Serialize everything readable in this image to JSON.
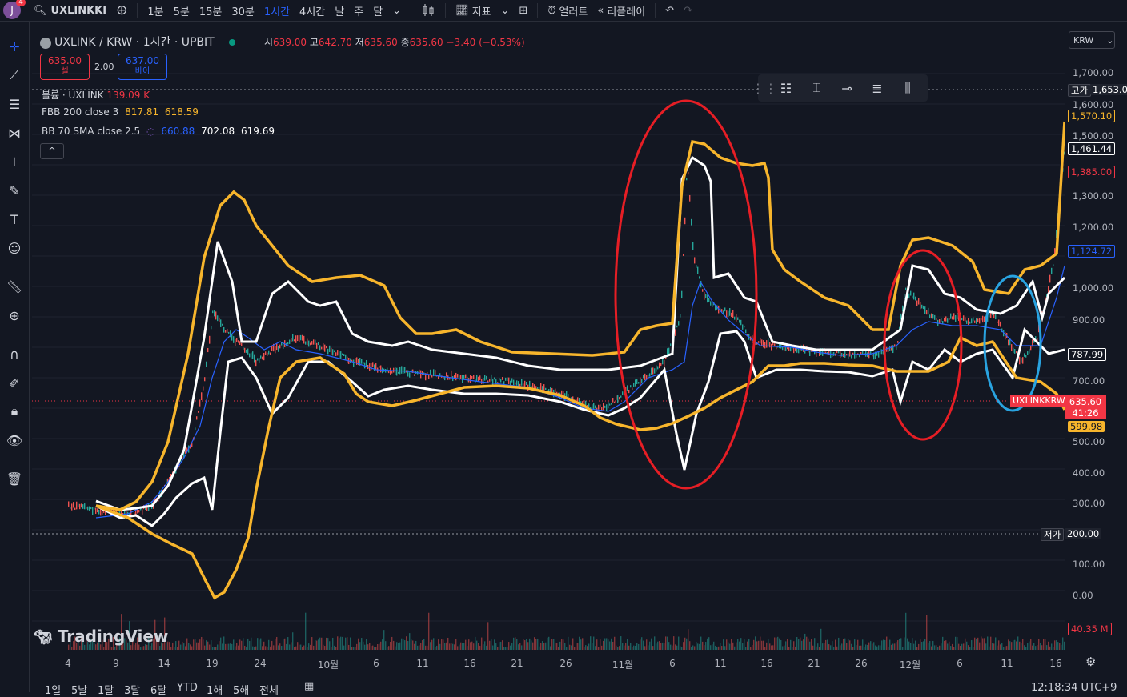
{
  "topbar": {
    "avatar_letter": "J",
    "avatar_badge": "4",
    "symbol": "UXLINKKI",
    "timeframes": [
      "1분",
      "5분",
      "15분",
      "30분",
      "1시간",
      "4시간",
      "날",
      "주",
      "달"
    ],
    "active_timeframe": "1시간",
    "indicators_label": "지표",
    "alert_label": "얼러트",
    "replay_label": "리플레이"
  },
  "legend": {
    "title": "UXLINK / KRW · 1시간 · UPBIT",
    "ohlc": {
      "o_label": "시",
      "o": "639.00",
      "h_label": "고",
      "h": "642.70",
      "l_label": "저",
      "l": "635.60",
      "c_label": "종",
      "c": "635.60",
      "change": "−3.40 (−0.53%)"
    },
    "sell_price": "635.00",
    "sell_label": "셀",
    "spread": "2.00",
    "buy_price": "637.00",
    "buy_label": "바이",
    "volume_label": "볼륨 · UXLINK",
    "volume_value": "139.09 K",
    "fbb_label": "FBB 200 close 3",
    "fbb_v1": "817.81",
    "fbb_v2": "618.59",
    "bb_label": "BB 70 SMA close 2.5",
    "bb_v1": "660.88",
    "bb_v2": "702.08",
    "bb_v3": "619.69"
  },
  "currency_select": "KRW",
  "price_axis": {
    "labels": [
      "1,700.00",
      "1,600.00",
      "1,500.00",
      "1,300.00",
      "1,200.00",
      "1,000.00",
      "900.00",
      "700.00",
      "500.00",
      "400.00",
      "300.00",
      "100.00",
      "0.00"
    ],
    "high_label": "고가",
    "high_value": "1,653.00",
    "low_label": "저가",
    "low_value": "200.00",
    "tag_1570": "1,570.10",
    "tag_1461": "1,461.44",
    "tag_1385": "1,385.00",
    "tag_1124": "1,124.72",
    "tag_787": "787.99",
    "current_symbol": "UXLINKKRW",
    "current_price": "635.60",
    "countdown": "41:26",
    "tag_599": "599.98",
    "volume_tag": "40.35 M"
  },
  "time_axis": [
    "4",
    "9",
    "14",
    "19",
    "24",
    "10월",
    "6",
    "11",
    "16",
    "21",
    "26",
    "11월",
    "6",
    "11",
    "16",
    "21",
    "26",
    "12월",
    "6",
    "11",
    "16"
  ],
  "bottombar": {
    "ranges": [
      "1일",
      "5날",
      "1달",
      "3달",
      "6달",
      "YTD",
      "1해",
      "5해",
      "전체"
    ],
    "clock": "12:18:34 UTC+9"
  },
  "watermark": "TradingView",
  "colors": {
    "outer_band": "#f7b52c",
    "inner_band": "#ffffff",
    "basis": "#2962ff",
    "annotation_red": "#e61e25",
    "annotation_blue": "#29a3e0",
    "up": "#26a69a",
    "down": "#ef5350"
  }
}
